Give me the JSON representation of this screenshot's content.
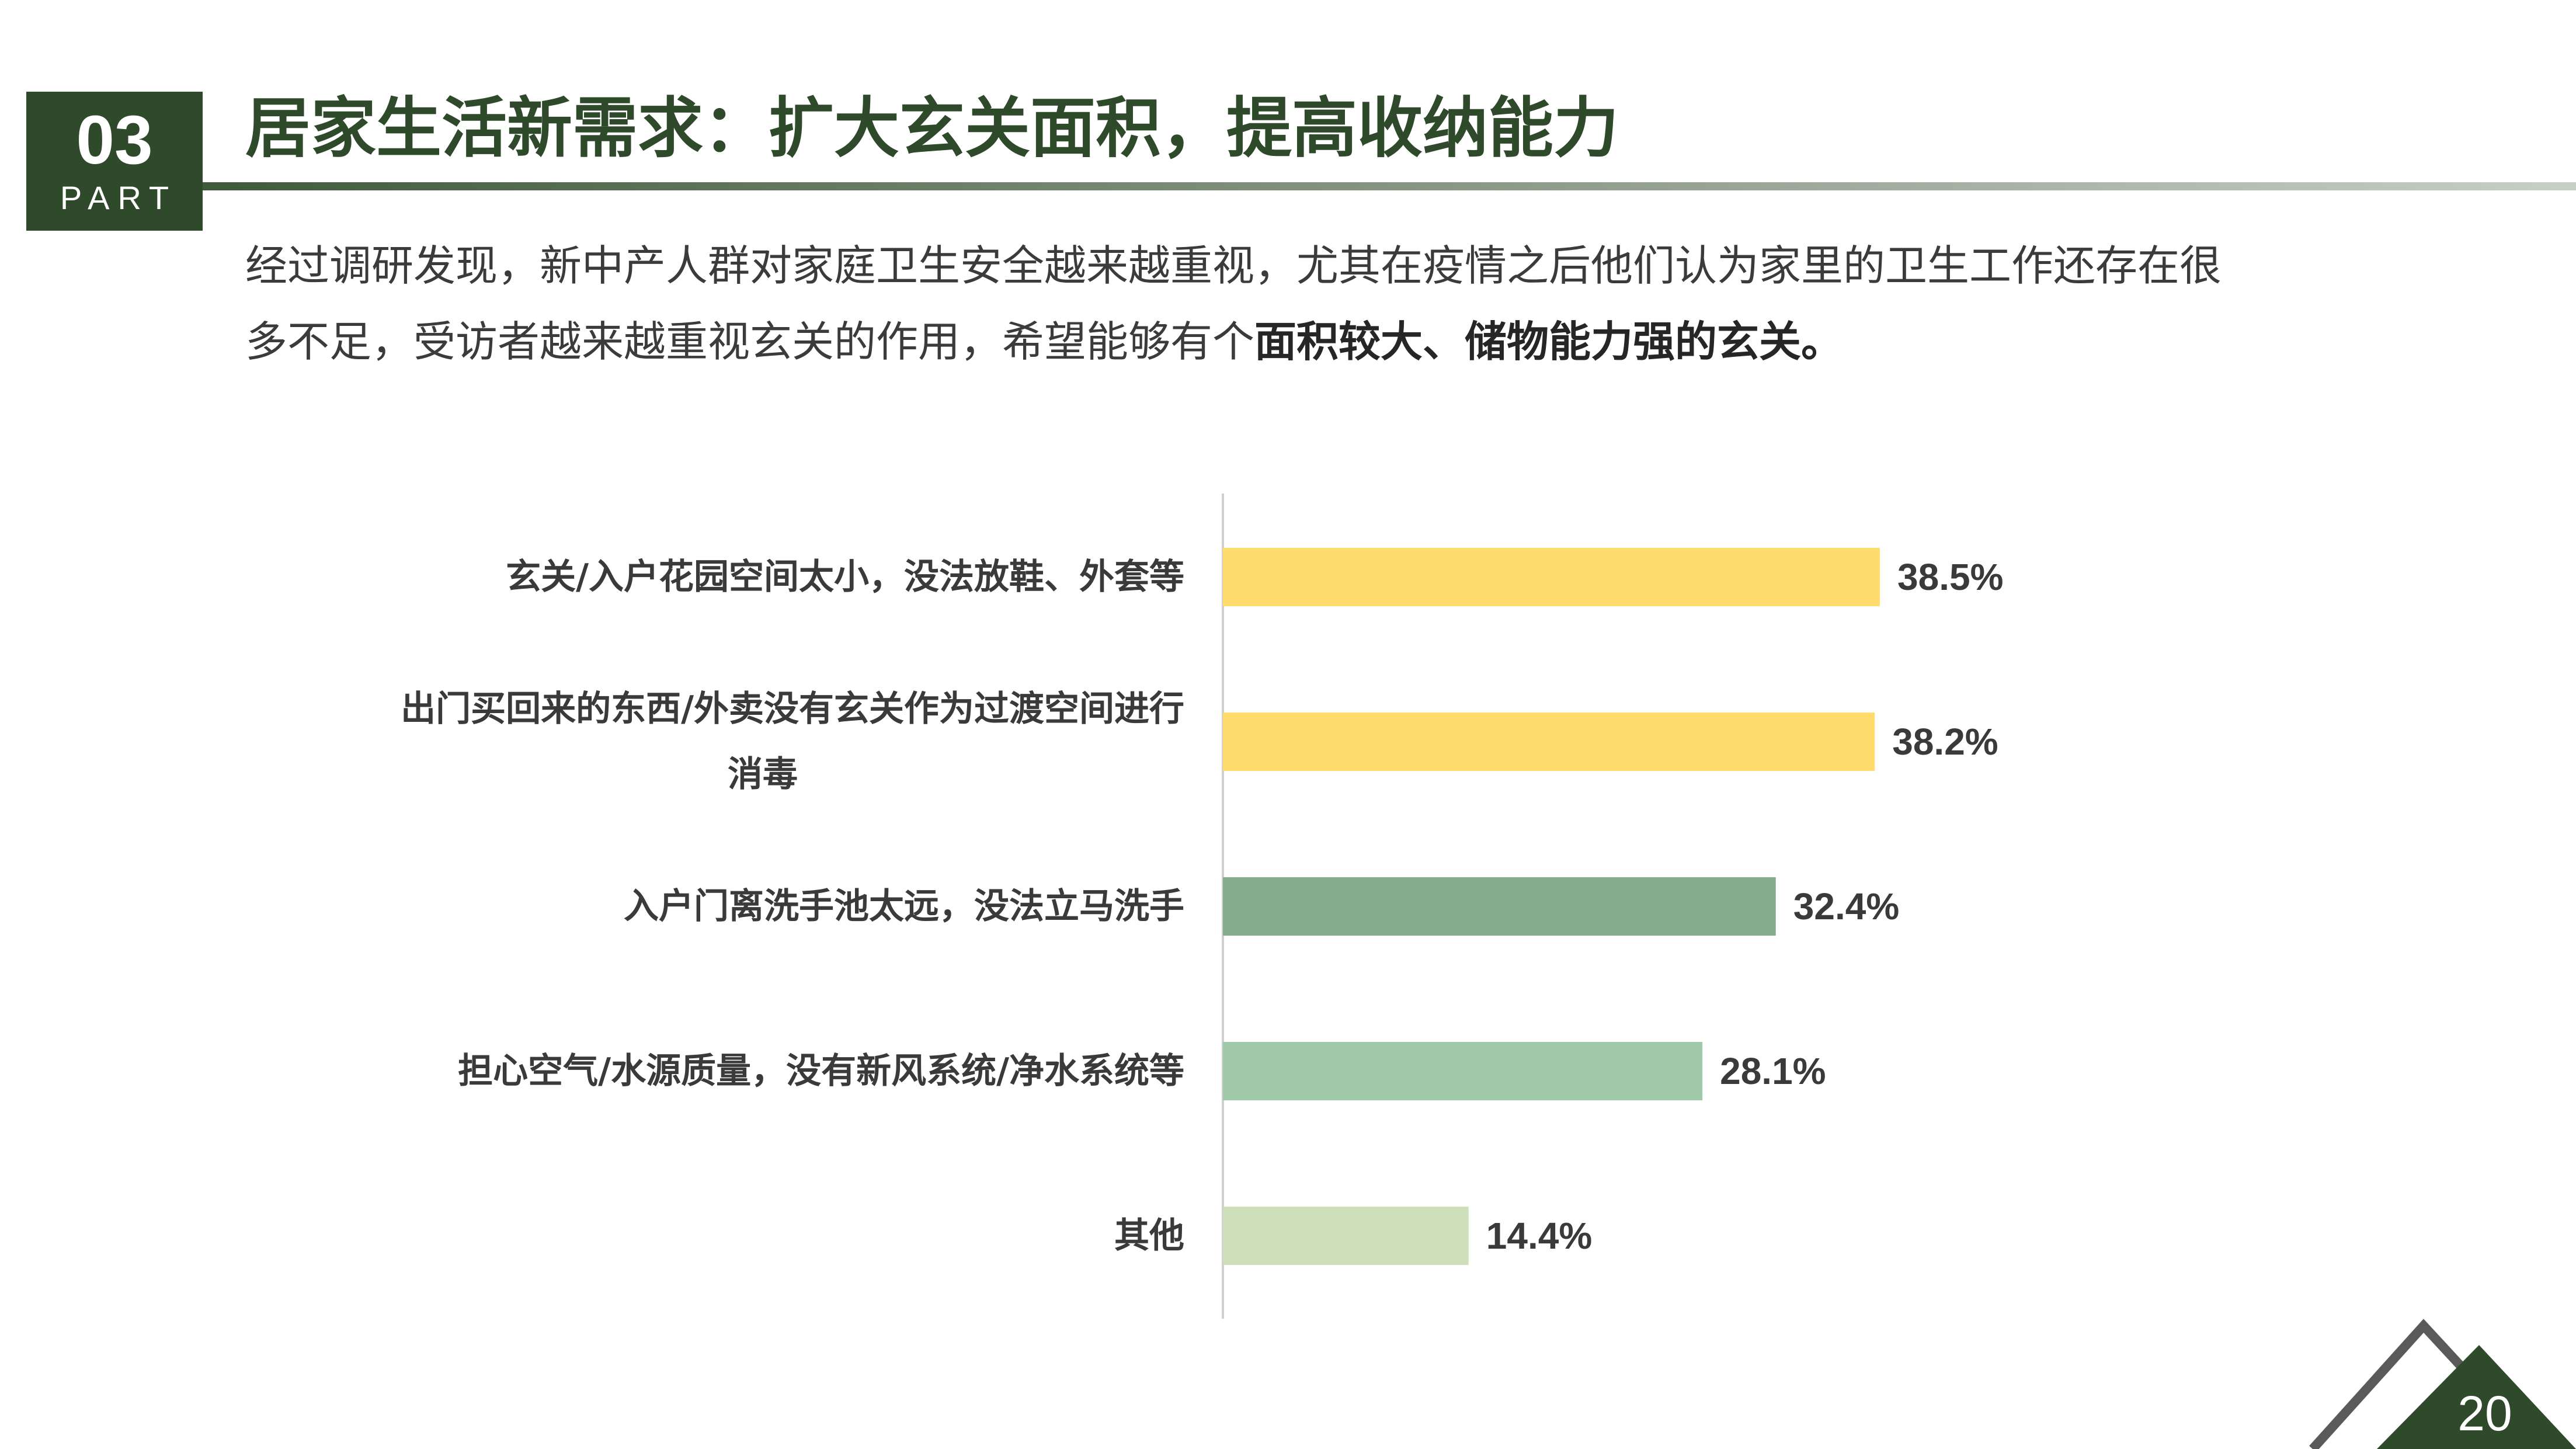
{
  "badge": {
    "number": "03",
    "word": "PART"
  },
  "title": "居家生活新需求：扩大玄关面积，提高收纳能力",
  "intro": {
    "line1": "经过调研发现，新中产人群对家庭卫生安全越来越重视，尤其在疫情之后他们认为家里的卫生工作还存在很",
    "line2_normal": "多不足，受访者越来越重视玄关的作用，希望能够有个",
    "line2_bold": "面积较大、储物能力强的玄关。"
  },
  "page_number": "20",
  "colors": {
    "dark_green": "#2e4a2b",
    "yellow": "#ffdc6b",
    "mid_green": "#86ac90",
    "light_green": "#9fc9a9",
    "pale_green": "#cde0bb"
  },
  "chart_data": {
    "type": "bar",
    "orientation": "horizontal",
    "categories": [
      "玄关/入户花园空间太小，没法放鞋、外套等",
      "出门买回来的东西/外卖没有玄关作为过渡空间进行消毒",
      "入户门离洗手池太远，没法立马洗手",
      "担心空气/水源质量，没有新风系统/净水系统等",
      "其他"
    ],
    "category_lines": [
      [
        "玄关/入户花园空间太小，没法放鞋、外套等"
      ],
      [
        "出门买回来的东西/外卖没有玄关作为过渡空间进行",
        "消毒"
      ],
      [
        "入户门离洗手池太远，没法立马洗手"
      ],
      [
        "担心空气/水源质量，没有新风系统/净水系统等"
      ],
      [
        "其他"
      ]
    ],
    "values": [
      38.5,
      38.2,
      32.4,
      28.1,
      14.4
    ],
    "value_labels": [
      "38.5%",
      "38.2%",
      "32.4%",
      "28.1%",
      "14.4%"
    ],
    "bar_colors": [
      "#ffdc6b",
      "#ffdc6b",
      "#86ac90",
      "#9fc9a9",
      "#cde0bb"
    ],
    "unit": "%",
    "xlim": [
      0,
      38.5
    ],
    "grid": false,
    "legend": "none"
  }
}
